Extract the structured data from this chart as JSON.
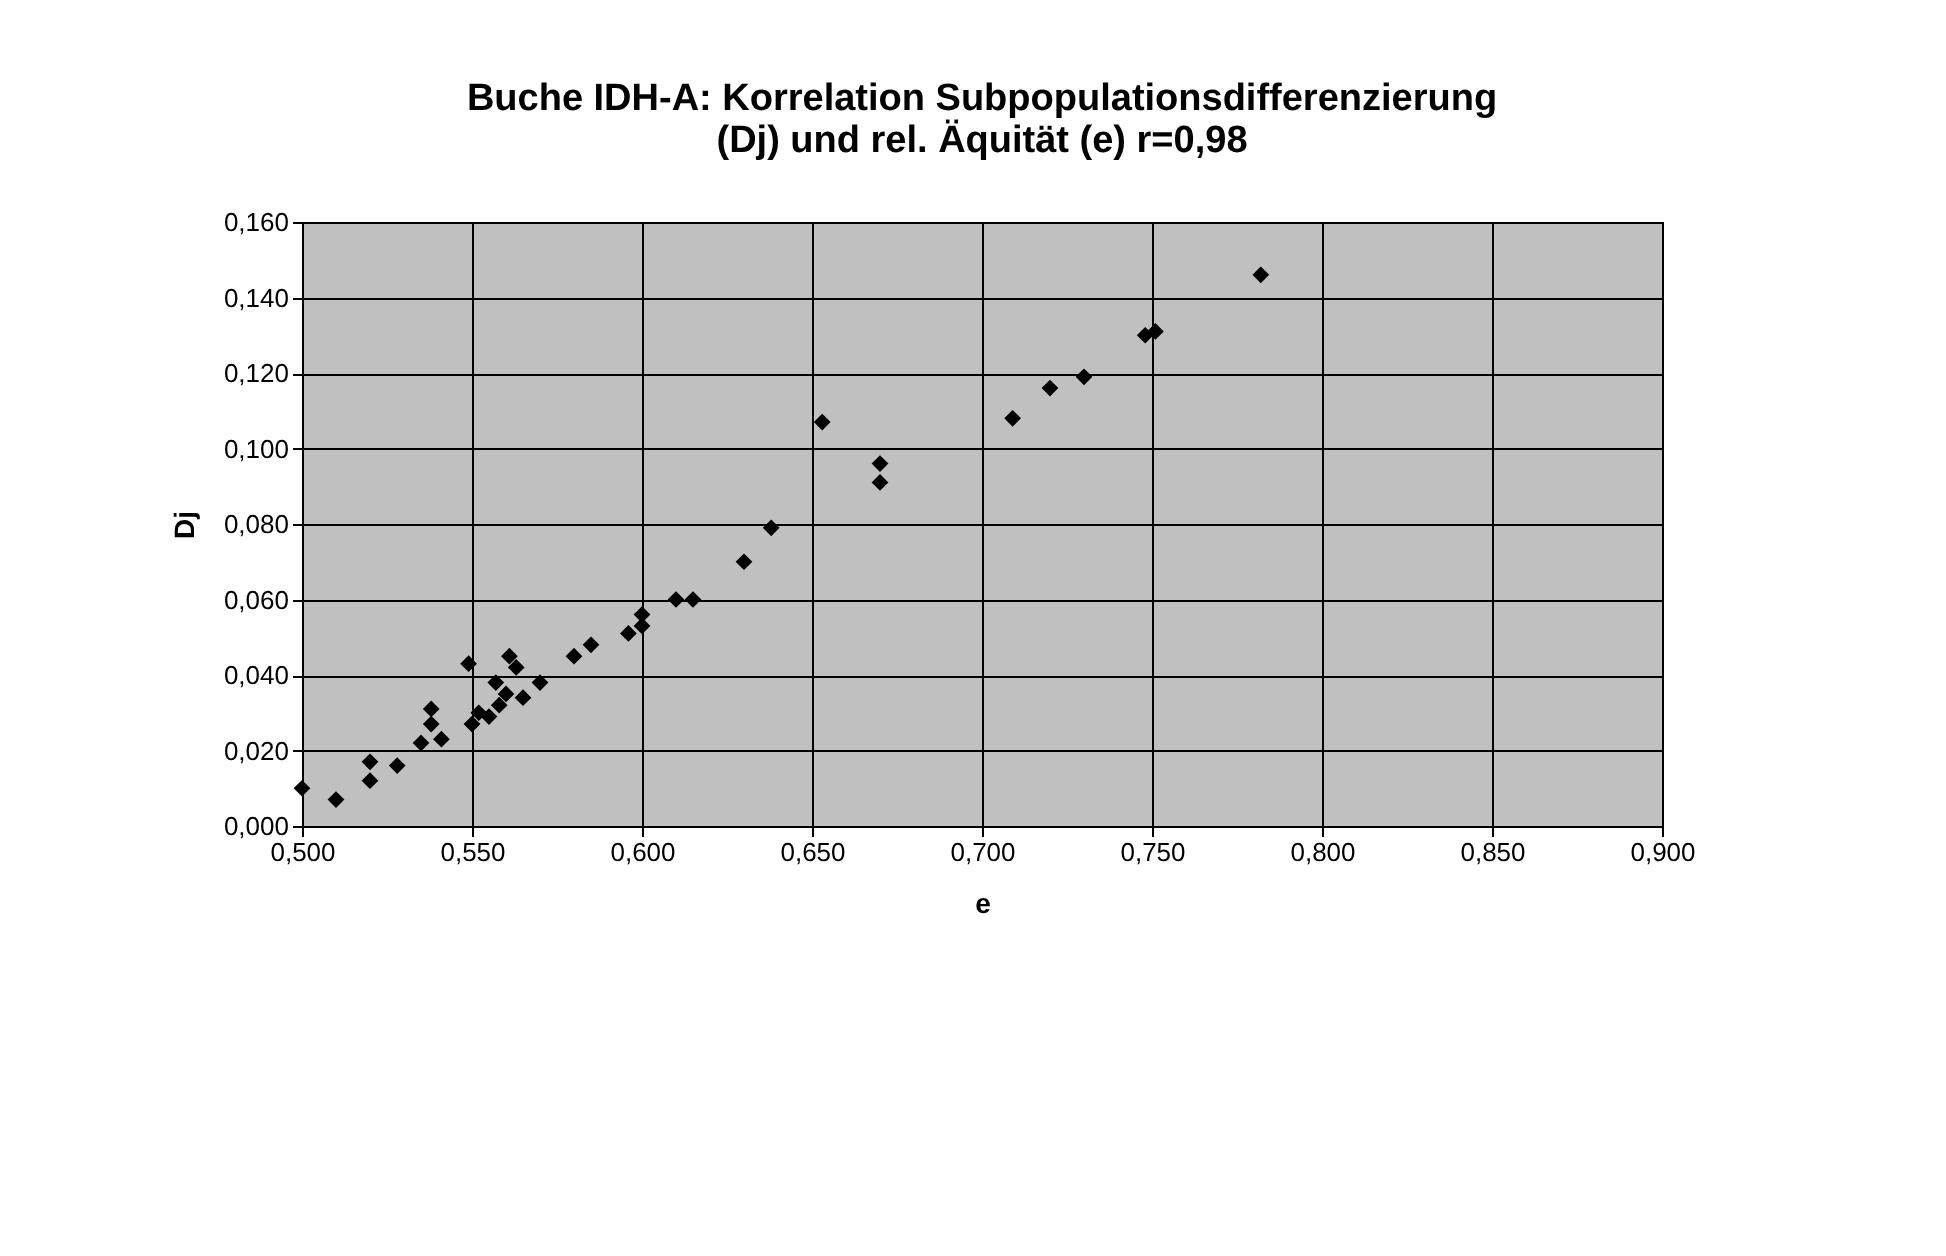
{
  "chart_data": {
    "type": "scatter",
    "title": "Buche IDH-A: Korrelation Subpopulationsdifferenzierung (Dj) und rel. Äquität (e) r=0,98",
    "xlabel": "e",
    "ylabel": "Dj",
    "marker": "diamond",
    "grid": true,
    "xlim": [
      0.5,
      0.9
    ],
    "xticks": [
      {
        "value": 0.5,
        "label": "0,500"
      },
      {
        "value": 0.55,
        "label": "0,550"
      },
      {
        "value": 0.6,
        "label": "0,600"
      },
      {
        "value": 0.65,
        "label": "0,650"
      },
      {
        "value": 0.7,
        "label": "0,700"
      },
      {
        "value": 0.75,
        "label": "0,750"
      },
      {
        "value": 0.8,
        "label": "0,800"
      },
      {
        "value": 0.85,
        "label": "0,850"
      },
      {
        "value": 0.9,
        "label": "0,900"
      }
    ],
    "ylim": [
      0,
      0.16
    ],
    "yticks": [
      {
        "value": 0,
        "label": "0,000"
      },
      {
        "value": 0.02,
        "label": "0,020"
      },
      {
        "value": 0.04,
        "label": "0,040"
      },
      {
        "value": 0.06,
        "label": "0,060"
      },
      {
        "value": 0.08,
        "label": "0,080"
      },
      {
        "value": 0.1,
        "label": "0,100"
      },
      {
        "value": 0.12,
        "label": "0,120"
      },
      {
        "value": 0.14,
        "label": "0,140"
      },
      {
        "value": 0.16,
        "label": "0,160"
      }
    ],
    "series": [
      {
        "color": "#000000",
        "x": [
          0.5,
          0.51,
          0.52,
          0.52,
          0.528,
          0.535,
          0.538,
          0.538,
          0.541,
          0.549,
          0.55,
          0.552,
          0.555,
          0.557,
          0.558,
          0.56,
          0.561,
          0.563,
          0.565,
          0.57,
          0.58,
          0.585,
          0.596,
          0.6,
          0.6,
          0.61,
          0.615,
          0.63,
          0.638,
          0.653,
          0.67,
          0.67,
          0.709,
          0.72,
          0.73,
          0.748,
          0.751,
          0.782
        ],
        "values": [
          0.01,
          0.007,
          0.017,
          0.012,
          0.016,
          0.022,
          0.031,
          0.027,
          0.023,
          0.043,
          0.027,
          0.03,
          0.029,
          0.038,
          0.032,
          0.035,
          0.045,
          0.042,
          0.034,
          0.038,
          0.045,
          0.048,
          0.051,
          0.053,
          0.056,
          0.06,
          0.06,
          0.07,
          0.079,
          0.107,
          0.096,
          0.091,
          0.108,
          0.116,
          0.119,
          0.13,
          0.131,
          0.146
        ]
      }
    ]
  }
}
